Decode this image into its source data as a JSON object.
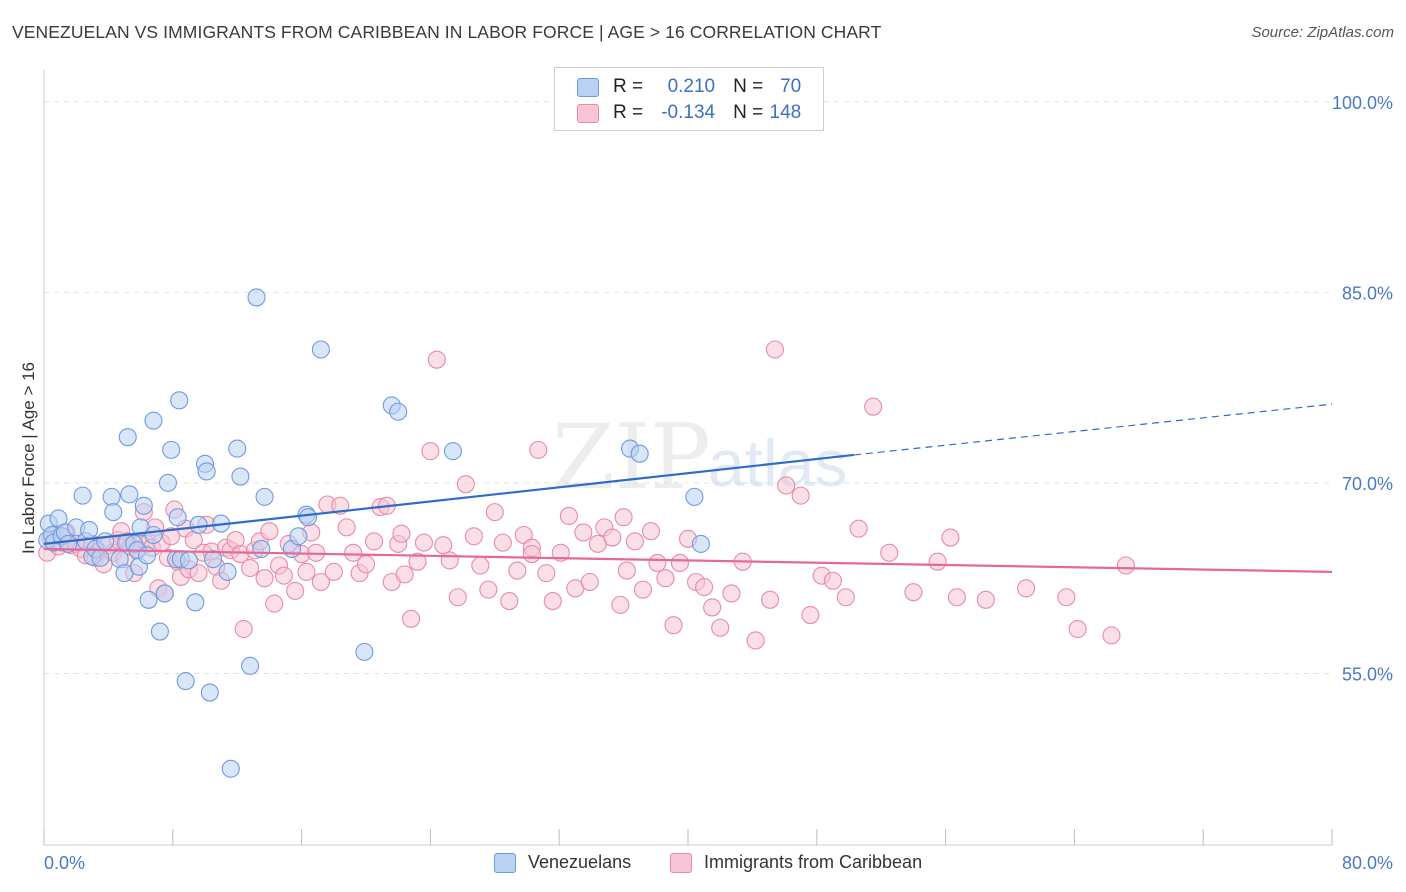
{
  "header": {
    "title": "VENEZUELAN VS IMMIGRANTS FROM CARIBBEAN IN LABOR FORCE | AGE > 16 CORRELATION CHART",
    "source": "Source: ZipAtlas.com"
  },
  "legend": {
    "r_label": "R =",
    "n_label": "N =",
    "rows": [
      {
        "r": "0.210",
        "n": "70"
      },
      {
        "r": "-0.134",
        "n": "148"
      }
    ]
  },
  "watermark": {
    "part1": "ZIP",
    "part2": "atlas"
  },
  "colors": {
    "blue_fill": "#bad1f2",
    "blue_stroke": "#6d9be0",
    "blue_line": "#2f6cc9",
    "pink_fill": "#f6c4d4",
    "pink_stroke": "#e98aa9",
    "pink_line": "#e4699a",
    "tick_color": "#4a78c8",
    "grid": "#e2e2e2"
  },
  "chart_data": {
    "type": "scatter",
    "title": "VENEZUELAN VS IMMIGRANTS FROM CARIBBEAN IN LABOR FORCE | AGE > 16 CORRELATION CHART",
    "xlabel": "",
    "ylabel": "In Labor Force | Age > 16",
    "xlim": [
      0,
      80
    ],
    "ylim": [
      41.5,
      102.5
    ],
    "x_tick_labels": [
      "0.0%",
      "80.0%"
    ],
    "y_ticks": [
      55,
      70,
      85,
      100
    ],
    "y_tick_labels": [
      "55.0%",
      "70.0%",
      "85.0%",
      "100.0%"
    ],
    "grid": true,
    "legend_position": "top-center",
    "series": [
      {
        "name": "Venezuelans",
        "color": "#6d9be0",
        "trend": {
          "x": [
            0,
            50.3
          ],
          "y": [
            65.2,
            72.2
          ],
          "dashed_to": [
            80,
            76.2
          ]
        },
        "points": [
          [
            0.2,
            65.5
          ],
          [
            0.3,
            66.8
          ],
          [
            0.5,
            65.9
          ],
          [
            0.6,
            65.3
          ],
          [
            0.9,
            67.2
          ],
          [
            1.1,
            65.8
          ],
          [
            1.3,
            66.1
          ],
          [
            1.5,
            65.2
          ],
          [
            2.0,
            66.5
          ],
          [
            2.4,
            69.0
          ],
          [
            2.6,
            65.4
          ],
          [
            2.8,
            66.3
          ],
          [
            3.0,
            64.2
          ],
          [
            3.2,
            64.8
          ],
          [
            3.5,
            64.1
          ],
          [
            3.8,
            65.4
          ],
          [
            4.2,
            68.9
          ],
          [
            4.3,
            67.7
          ],
          [
            4.7,
            64.0
          ],
          [
            5.0,
            62.9
          ],
          [
            5.1,
            65.3
          ],
          [
            5.2,
            73.6
          ],
          [
            5.3,
            69.1
          ],
          [
            5.6,
            65.2
          ],
          [
            5.8,
            64.7
          ],
          [
            5.9,
            63.4
          ],
          [
            6.0,
            66.5
          ],
          [
            6.2,
            68.2
          ],
          [
            6.4,
            64.3
          ],
          [
            6.5,
            60.8
          ],
          [
            6.8,
            65.9
          ],
          [
            6.8,
            74.9
          ],
          [
            7.2,
            58.3
          ],
          [
            7.5,
            61.3
          ],
          [
            7.7,
            70.0
          ],
          [
            7.9,
            72.6
          ],
          [
            8.2,
            64.0
          ],
          [
            8.3,
            67.3
          ],
          [
            8.4,
            76.5
          ],
          [
            8.5,
            64.0
          ],
          [
            8.8,
            54.4
          ],
          [
            9.0,
            63.9
          ],
          [
            9.4,
            60.6
          ],
          [
            9.6,
            66.7
          ],
          [
            10.0,
            71.5
          ],
          [
            10.1,
            70.9
          ],
          [
            10.3,
            53.5
          ],
          [
            10.5,
            64.0
          ],
          [
            11.0,
            66.8
          ],
          [
            11.4,
            63.0
          ],
          [
            11.6,
            47.5
          ],
          [
            12.0,
            72.7
          ],
          [
            12.2,
            70.5
          ],
          [
            12.8,
            55.6
          ],
          [
            13.2,
            84.6
          ],
          [
            13.5,
            64.8
          ],
          [
            13.7,
            68.9
          ],
          [
            15.4,
            64.8
          ],
          [
            15.8,
            65.8
          ],
          [
            16.3,
            67.5
          ],
          [
            16.4,
            67.3
          ],
          [
            17.2,
            80.5
          ],
          [
            19.9,
            56.7
          ],
          [
            21.6,
            76.1
          ],
          [
            22.0,
            75.6
          ],
          [
            25.4,
            72.5
          ],
          [
            36.4,
            72.7
          ],
          [
            37.0,
            72.3
          ],
          [
            40.4,
            68.9
          ],
          [
            40.8,
            65.2
          ]
        ]
      },
      {
        "name": "Immigrants from Caribbean",
        "color": "#e98aa9",
        "trend": {
          "x": [
            0,
            80
          ],
          "y": [
            64.8,
            63.0
          ]
        },
        "points": [
          [
            0.2,
            64.5
          ],
          [
            0.4,
            65.6
          ],
          [
            0.7,
            66.0
          ],
          [
            0.9,
            65.0
          ],
          [
            1.1,
            65.3
          ],
          [
            1.4,
            66.1
          ],
          [
            1.7,
            65.1
          ],
          [
            2.0,
            65.2
          ],
          [
            2.3,
            64.8
          ],
          [
            2.6,
            64.3
          ],
          [
            3.0,
            65.2
          ],
          [
            3.2,
            64.1
          ],
          [
            3.4,
            64.6
          ],
          [
            3.7,
            63.6
          ],
          [
            4.0,
            65.1
          ],
          [
            4.3,
            64.5
          ],
          [
            4.6,
            65.5
          ],
          [
            4.8,
            66.2
          ],
          [
            5.0,
            64.0
          ],
          [
            5.2,
            65.4
          ],
          [
            5.4,
            65.0
          ],
          [
            5.6,
            62.9
          ],
          [
            5.8,
            64.8
          ],
          [
            6.0,
            65.3
          ],
          [
            6.2,
            67.7
          ],
          [
            6.4,
            65.2
          ],
          [
            6.7,
            64.9
          ],
          [
            6.9,
            66.5
          ],
          [
            7.1,
            61.7
          ],
          [
            7.3,
            65.3
          ],
          [
            7.5,
            61.3
          ],
          [
            7.7,
            64.1
          ],
          [
            7.9,
            65.8
          ],
          [
            8.1,
            67.9
          ],
          [
            8.3,
            63.8
          ],
          [
            8.5,
            62.6
          ],
          [
            8.8,
            66.4
          ],
          [
            9.0,
            63.2
          ],
          [
            9.3,
            65.5
          ],
          [
            9.6,
            62.9
          ],
          [
            9.9,
            64.5
          ],
          [
            10.1,
            66.7
          ],
          [
            10.4,
            64.6
          ],
          [
            10.7,
            63.4
          ],
          [
            11.0,
            62.3
          ],
          [
            11.3,
            64.9
          ],
          [
            11.6,
            64.7
          ],
          [
            11.9,
            65.5
          ],
          [
            12.2,
            64.4
          ],
          [
            12.4,
            58.5
          ],
          [
            12.8,
            63.3
          ],
          [
            13.1,
            64.7
          ],
          [
            13.4,
            65.4
          ],
          [
            13.7,
            62.5
          ],
          [
            14.0,
            66.2
          ],
          [
            14.3,
            60.5
          ],
          [
            14.6,
            63.5
          ],
          [
            14.9,
            62.7
          ],
          [
            15.2,
            65.2
          ],
          [
            15.6,
            61.5
          ],
          [
            16.0,
            64.4
          ],
          [
            16.3,
            63.0
          ],
          [
            16.6,
            66.1
          ],
          [
            16.9,
            64.5
          ],
          [
            17.2,
            62.2
          ],
          [
            17.6,
            68.3
          ],
          [
            18.0,
            63.0
          ],
          [
            18.4,
            68.2
          ],
          [
            18.8,
            66.5
          ],
          [
            19.2,
            64.5
          ],
          [
            19.6,
            62.9
          ],
          [
            20.0,
            63.6
          ],
          [
            20.5,
            65.4
          ],
          [
            20.9,
            68.1
          ],
          [
            21.3,
            68.2
          ],
          [
            21.6,
            62.2
          ],
          [
            22.0,
            65.2
          ],
          [
            22.4,
            62.8
          ],
          [
            22.8,
            59.3
          ],
          [
            23.2,
            63.8
          ],
          [
            23.6,
            65.3
          ],
          [
            24.0,
            72.5
          ],
          [
            24.4,
            79.7
          ],
          [
            24.8,
            65.1
          ],
          [
            25.2,
            63.9
          ],
          [
            25.7,
            61.0
          ],
          [
            26.2,
            69.9
          ],
          [
            26.7,
            65.8
          ],
          [
            27.1,
            63.5
          ],
          [
            27.6,
            61.6
          ],
          [
            28.0,
            67.7
          ],
          [
            28.5,
            65.3
          ],
          [
            28.9,
            60.7
          ],
          [
            29.4,
            63.1
          ],
          [
            29.8,
            65.9
          ],
          [
            30.3,
            64.9
          ],
          [
            30.7,
            72.6
          ],
          [
            31.2,
            62.9
          ],
          [
            31.6,
            60.7
          ],
          [
            32.1,
            64.5
          ],
          [
            32.6,
            67.4
          ],
          [
            33.0,
            61.7
          ],
          [
            33.5,
            66.1
          ],
          [
            33.9,
            62.2
          ],
          [
            34.4,
            65.2
          ],
          [
            34.8,
            66.5
          ],
          [
            35.3,
            65.7
          ],
          [
            35.8,
            60.4
          ],
          [
            36.2,
            63.1
          ],
          [
            36.7,
            65.4
          ],
          [
            37.2,
            61.6
          ],
          [
            37.7,
            66.2
          ],
          [
            38.1,
            63.7
          ],
          [
            38.6,
            62.5
          ],
          [
            39.1,
            58.8
          ],
          [
            39.5,
            63.7
          ],
          [
            40.0,
            65.6
          ],
          [
            40.5,
            62.2
          ],
          [
            41.0,
            61.8
          ],
          [
            41.5,
            60.2
          ],
          [
            42.0,
            58.6
          ],
          [
            42.7,
            61.3
          ],
          [
            43.4,
            63.8
          ],
          [
            44.2,
            57.6
          ],
          [
            45.1,
            60.8
          ],
          [
            46.1,
            69.8
          ],
          [
            47.0,
            69.0
          ],
          [
            47.6,
            59.6
          ],
          [
            48.3,
            62.7
          ],
          [
            49.0,
            62.3
          ],
          [
            49.8,
            61.0
          ],
          [
            50.6,
            66.4
          ],
          [
            51.5,
            76.0
          ],
          [
            52.5,
            64.5
          ],
          [
            54.0,
            61.4
          ],
          [
            55.5,
            63.8
          ],
          [
            56.3,
            65.7
          ],
          [
            56.7,
            61.0
          ],
          [
            58.5,
            60.8
          ],
          [
            61.0,
            61.7
          ],
          [
            63.5,
            61.0
          ],
          [
            64.2,
            58.5
          ],
          [
            66.3,
            58.0
          ],
          [
            67.2,
            63.5
          ],
          [
            22.2,
            66.0
          ],
          [
            30.3,
            64.4
          ],
          [
            45.4,
            80.5
          ],
          [
            36.0,
            67.3
          ]
        ]
      }
    ]
  },
  "bottom_legend": {
    "items": [
      "Venezuelans",
      "Immigrants from Caribbean"
    ]
  }
}
